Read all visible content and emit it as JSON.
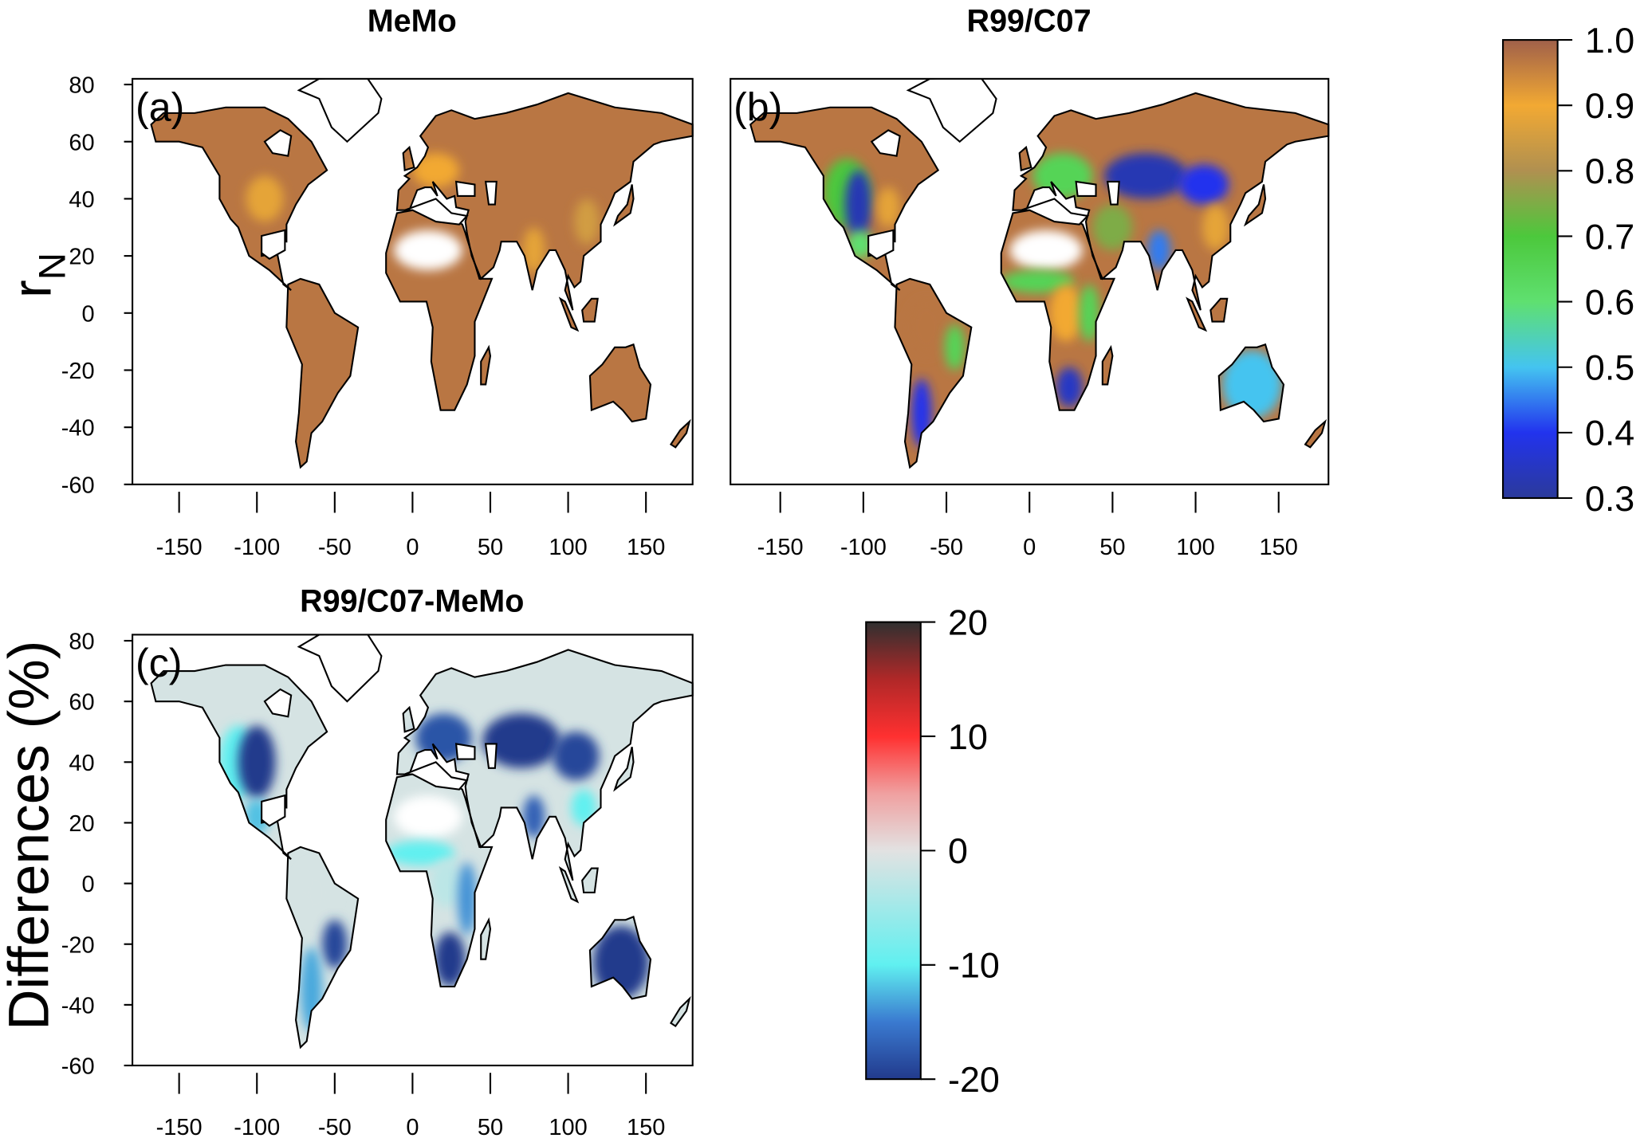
{
  "chart_data": [
    {
      "type": "heatmap",
      "panel": "(a)",
      "title": "MeMo",
      "ylabel": "r_N",
      "xlim": [
        -180,
        180
      ],
      "ylim": [
        -60,
        82
      ],
      "xticks": [
        -150,
        -100,
        -50,
        0,
        50,
        100,
        150
      ],
      "yticks": [
        80,
        60,
        40,
        20,
        0,
        -20,
        -40,
        -60
      ],
      "colorbar": "rn",
      "base_value": 0.97,
      "regions": [
        {
          "name": "central-us",
          "lon": -95,
          "lat": 40,
          "rlon": 12,
          "rlat": 8,
          "value": 0.88
        },
        {
          "name": "europe",
          "lon": 15,
          "lat": 50,
          "rlon": 15,
          "rlat": 6,
          "value": 0.9
        },
        {
          "name": "india",
          "lon": 78,
          "lat": 22,
          "rlon": 7,
          "rlat": 8,
          "value": 0.88
        },
        {
          "name": "east-china",
          "lon": 112,
          "lat": 32,
          "rlon": 8,
          "rlat": 8,
          "value": 0.85
        },
        {
          "name": "sahara",
          "lon": 10,
          "lat": 22,
          "rlon": 22,
          "rlat": 7,
          "value": null
        }
      ]
    },
    {
      "type": "heatmap",
      "panel": "(b)",
      "title": "R99/C07",
      "xlim": [
        -180,
        180
      ],
      "ylim": [
        -60,
        82
      ],
      "xticks": [
        -150,
        -100,
        -50,
        0,
        50,
        100,
        150
      ],
      "colorbar": "rn",
      "base_value": 0.97,
      "regions": [
        {
          "name": "western-us",
          "lon": -110,
          "lat": 42,
          "rlon": 14,
          "rlat": 12,
          "value": 0.7
        },
        {
          "name": "central-us",
          "lon": -103,
          "lat": 38,
          "rlon": 8,
          "rlat": 12,
          "value": 0.33
        },
        {
          "name": "mexico",
          "lon": -102,
          "lat": 24,
          "rlon": 8,
          "rlat": 5,
          "value": 0.6
        },
        {
          "name": "eastern-us",
          "lon": -85,
          "lat": 37,
          "rlon": 7,
          "rlat": 7,
          "value": 0.88
        },
        {
          "name": "europe",
          "lon": 20,
          "lat": 48,
          "rlon": 18,
          "rlat": 8,
          "value": 0.65
        },
        {
          "name": "central-asia",
          "lon": 70,
          "lat": 48,
          "rlon": 25,
          "rlat": 8,
          "value": 0.33
        },
        {
          "name": "mongolia",
          "lon": 105,
          "lat": 45,
          "rlon": 15,
          "rlat": 7,
          "value": 0.4
        },
        {
          "name": "middle-east",
          "lon": 50,
          "lat": 30,
          "rlon": 12,
          "rlat": 8,
          "value": 0.75
        },
        {
          "name": "india",
          "lon": 78,
          "lat": 22,
          "rlon": 7,
          "rlat": 7,
          "value": 0.45
        },
        {
          "name": "east-china",
          "lon": 112,
          "lat": 30,
          "rlon": 8,
          "rlat": 8,
          "value": 0.88
        },
        {
          "name": "sahara",
          "lon": 10,
          "lat": 22,
          "rlon": 22,
          "rlat": 7,
          "value": null
        },
        {
          "name": "sahel",
          "lon": 5,
          "lat": 11,
          "rlon": 22,
          "rlat": 4,
          "value": 0.65
        },
        {
          "name": "central-africa",
          "lon": 22,
          "lat": 0,
          "rlon": 10,
          "rlat": 10,
          "value": 0.9
        },
        {
          "name": "east-africa",
          "lon": 36,
          "lat": 0,
          "rlon": 6,
          "rlat": 10,
          "value": 0.65
        },
        {
          "name": "southern-africa",
          "lon": 24,
          "lat": -26,
          "rlon": 8,
          "rlat": 7,
          "value": 0.35
        },
        {
          "name": "amazon",
          "lon": -62,
          "lat": -5,
          "rlon": 12,
          "rlat": 10,
          "value": 0.97
        },
        {
          "name": "brazil-east",
          "lon": -45,
          "lat": -12,
          "rlon": 6,
          "rlat": 8,
          "value": 0.65
        },
        {
          "name": "argentina",
          "lon": -65,
          "lat": -35,
          "rlon": 6,
          "rlat": 12,
          "value": 0.4
        },
        {
          "name": "australia",
          "lon": 134,
          "lat": -25,
          "rlon": 18,
          "rlat": 12,
          "value": 0.5
        }
      ]
    },
    {
      "type": "heatmap",
      "panel": "(c)",
      "title": "R99/C07-MeMo",
      "ylabel": "Differences (%)",
      "xlim": [
        -180,
        180
      ],
      "ylim": [
        -60,
        82
      ],
      "xticks": [
        -150,
        -100,
        -50,
        0,
        50,
        100,
        150
      ],
      "yticks": [
        80,
        60,
        40,
        20,
        0,
        -20,
        -40,
        -60
      ],
      "colorbar": "diff",
      "base_value": -1,
      "regions": [
        {
          "name": "western-us",
          "lon": -112,
          "lat": 40,
          "rlon": 12,
          "rlat": 12,
          "value": -10
        },
        {
          "name": "central-us",
          "lon": -100,
          "lat": 40,
          "rlon": 12,
          "rlat": 12,
          "value": -20
        },
        {
          "name": "mexico",
          "lon": -100,
          "lat": 22,
          "rlon": 8,
          "rlat": 6,
          "value": -12
        },
        {
          "name": "europe",
          "lon": 20,
          "lat": 48,
          "rlon": 18,
          "rlat": 8,
          "value": -18
        },
        {
          "name": "central-asia",
          "lon": 70,
          "lat": 47,
          "rlon": 25,
          "rlat": 9,
          "value": -20
        },
        {
          "name": "mongolia",
          "lon": 105,
          "lat": 42,
          "rlon": 15,
          "rlat": 8,
          "value": -19
        },
        {
          "name": "india",
          "lon": 78,
          "lat": 22,
          "rlon": 7,
          "rlat": 7,
          "value": -17
        },
        {
          "name": "south-china",
          "lon": 110,
          "lat": 25,
          "rlon": 8,
          "rlat": 6,
          "value": -10
        },
        {
          "name": "sahara",
          "lon": 10,
          "lat": 22,
          "rlon": 22,
          "rlat": 7,
          "value": null
        },
        {
          "name": "sahel",
          "lon": 5,
          "lat": 10,
          "rlon": 22,
          "rlat": 4,
          "value": -10
        },
        {
          "name": "central-africa",
          "lon": 22,
          "lat": 0,
          "rlon": 10,
          "rlat": 8,
          "value": -3
        },
        {
          "name": "east-africa",
          "lon": 35,
          "lat": -5,
          "rlon": 6,
          "rlat": 12,
          "value": -14
        },
        {
          "name": "southern-africa",
          "lon": 24,
          "lat": -25,
          "rlon": 10,
          "rlat": 9,
          "value": -20
        },
        {
          "name": "amazon",
          "lon": -62,
          "lat": -3,
          "rlon": 12,
          "rlat": 9,
          "value": -1
        },
        {
          "name": "brazil-south",
          "lon": -50,
          "lat": -20,
          "rlon": 8,
          "rlat": 8,
          "value": -19
        },
        {
          "name": "argentina",
          "lon": -65,
          "lat": -35,
          "rlon": 7,
          "rlat": 14,
          "value": -13
        },
        {
          "name": "australia",
          "lon": 134,
          "lat": -26,
          "rlon": 18,
          "rlat": 12,
          "value": -20
        }
      ]
    }
  ],
  "colorbars": {
    "rn": {
      "range": [
        0.3,
        1.0
      ],
      "tick_labels": [
        "1.0",
        "0.9",
        "0.8",
        "0.7",
        "0.6",
        "0.5",
        "0.4",
        "0.3"
      ],
      "ticks": [
        1.0,
        0.9,
        0.8,
        0.7,
        0.6,
        0.5,
        0.4,
        0.3
      ],
      "stops": [
        [
          0.3,
          "#2b3a9a"
        ],
        [
          0.4,
          "#2233ee"
        ],
        [
          0.5,
          "#44c4f0"
        ],
        [
          0.6,
          "#5fe070"
        ],
        [
          0.7,
          "#4cc83c"
        ],
        [
          0.8,
          "#b09050"
        ],
        [
          0.9,
          "#f2a933"
        ],
        [
          1.0,
          "#a0604a"
        ]
      ]
    },
    "diff": {
      "range": [
        -20,
        20
      ],
      "tick_labels": [
        "20",
        "10",
        "0",
        "-10",
        "-20"
      ],
      "ticks": [
        20,
        10,
        0,
        -10,
        -20
      ],
      "stops": [
        [
          -20,
          "#223a8c"
        ],
        [
          -15,
          "#3a7ad0"
        ],
        [
          -10,
          "#60f0f0"
        ],
        [
          0,
          "#e2e2e2"
        ],
        [
          5,
          "#f0a0a0"
        ],
        [
          10,
          "#ff3030"
        ],
        [
          15,
          "#b02828"
        ],
        [
          20,
          "#303030"
        ]
      ]
    }
  },
  "land_na_color": "#ffffff",
  "continents": {
    "north-america": [
      [
        -168,
        66
      ],
      [
        -160,
        70
      ],
      [
        -140,
        70
      ],
      [
        -120,
        72
      ],
      [
        -95,
        72
      ],
      [
        -80,
        68
      ],
      [
        -65,
        60
      ],
      [
        -55,
        50
      ],
      [
        -67,
        45
      ],
      [
        -75,
        38
      ],
      [
        -81,
        31
      ],
      [
        -81,
        25
      ],
      [
        -97,
        26
      ],
      [
        -97,
        20
      ],
      [
        -87,
        21
      ],
      [
        -83,
        10
      ],
      [
        -78,
        8
      ],
      [
        -92,
        15
      ],
      [
        -105,
        20
      ],
      [
        -112,
        30
      ],
      [
        -117,
        33
      ],
      [
        -124,
        40
      ],
      [
        -124,
        48
      ],
      [
        -135,
        58
      ],
      [
        -150,
        60
      ],
      [
        -165,
        60
      ]
    ],
    "south-america": [
      [
        -80,
        10
      ],
      [
        -72,
        12
      ],
      [
        -60,
        10
      ],
      [
        -50,
        0
      ],
      [
        -35,
        -5
      ],
      [
        -40,
        -22
      ],
      [
        -48,
        -28
      ],
      [
        -58,
        -38
      ],
      [
        -65,
        -42
      ],
      [
        -68,
        -52
      ],
      [
        -72,
        -54
      ],
      [
        -75,
        -45
      ],
      [
        -73,
        -35
      ],
      [
        -71,
        -18
      ],
      [
        -81,
        -5
      ]
    ],
    "africa": [
      [
        -17,
        21
      ],
      [
        -10,
        35
      ],
      [
        10,
        37
      ],
      [
        32,
        31
      ],
      [
        34,
        28
      ],
      [
        43,
        12
      ],
      [
        51,
        12
      ],
      [
        40,
        -3
      ],
      [
        40,
        -15
      ],
      [
        35,
        -25
      ],
      [
        27,
        -34
      ],
      [
        18,
        -34
      ],
      [
        12,
        -17
      ],
      [
        13,
        -5
      ],
      [
        9,
        4
      ],
      [
        -8,
        4
      ],
      [
        -17,
        14
      ]
    ],
    "eurasia": [
      [
        -10,
        36
      ],
      [
        -9,
        43
      ],
      [
        -2,
        47
      ],
      [
        -5,
        48
      ],
      [
        3,
        51
      ],
      [
        8,
        55
      ],
      [
        10,
        58
      ],
      [
        5,
        62
      ],
      [
        15,
        69
      ],
      [
        25,
        71
      ],
      [
        40,
        68
      ],
      [
        60,
        70
      ],
      [
        80,
        73
      ],
      [
        100,
        77
      ],
      [
        130,
        72
      ],
      [
        160,
        70
      ],
      [
        180,
        66
      ],
      [
        180,
        62
      ],
      [
        160,
        60
      ],
      [
        155,
        59
      ],
      [
        142,
        53
      ],
      [
        140,
        46
      ],
      [
        130,
        42
      ],
      [
        127,
        38
      ],
      [
        121,
        31
      ],
      [
        121,
        25
      ],
      [
        110,
        20
      ],
      [
        108,
        11
      ],
      [
        104,
        9
      ],
      [
        100,
        13
      ],
      [
        98,
        8
      ],
      [
        103,
        1
      ],
      [
        98,
        15
      ],
      [
        92,
        22
      ],
      [
        88,
        22
      ],
      [
        80,
        15
      ],
      [
        77,
        8
      ],
      [
        72,
        20
      ],
      [
        67,
        25
      ],
      [
        57,
        25
      ],
      [
        56,
        22
      ],
      [
        52,
        16
      ],
      [
        44,
        12
      ],
      [
        38,
        20
      ],
      [
        35,
        28
      ],
      [
        34,
        32
      ],
      [
        36,
        36
      ],
      [
        28,
        37
      ],
      [
        27,
        41
      ],
      [
        22,
        40
      ],
      [
        19,
        42
      ],
      [
        13,
        46
      ],
      [
        16,
        41
      ],
      [
        12,
        44
      ],
      [
        8,
        44
      ],
      [
        3,
        43
      ],
      [
        -2,
        36
      ]
    ],
    "australia": [
      [
        114,
        -22
      ],
      [
        122,
        -18
      ],
      [
        130,
        -12
      ],
      [
        137,
        -12
      ],
      [
        142,
        -11
      ],
      [
        146,
        -19
      ],
      [
        153,
        -25
      ],
      [
        150,
        -37
      ],
      [
        141,
        -38
      ],
      [
        135,
        -34
      ],
      [
        129,
        -31
      ],
      [
        115,
        -34
      ]
    ],
    "great-britain": [
      [
        -5,
        50
      ],
      [
        1,
        51
      ],
      [
        -2,
        58
      ],
      [
        -6,
        56
      ]
    ],
    "japan": [
      [
        130,
        31
      ],
      [
        140,
        35
      ],
      [
        142,
        40
      ],
      [
        141,
        45
      ],
      [
        138,
        38
      ],
      [
        132,
        34
      ]
    ],
    "madagascar": [
      [
        44,
        -25
      ],
      [
        47,
        -25
      ],
      [
        50,
        -15
      ],
      [
        49,
        -12
      ],
      [
        44,
        -17
      ]
    ],
    "borneo": [
      [
        109,
        1
      ],
      [
        115,
        5
      ],
      [
        119,
        5
      ],
      [
        117,
        -3
      ],
      [
        110,
        -3
      ]
    ],
    "sumatra": [
      [
        95,
        5
      ],
      [
        98,
        4
      ],
      [
        106,
        -6
      ],
      [
        102,
        -5
      ]
    ],
    "new-zealand": [
      [
        166,
        -46
      ],
      [
        172,
        -41
      ],
      [
        178,
        -38
      ],
      [
        176,
        -42
      ],
      [
        169,
        -47
      ]
    ]
  },
  "white_regions": {
    "greenland": [
      [
        -73,
        78
      ],
      [
        -60,
        82
      ],
      [
        -30,
        83
      ],
      [
        -20,
        75
      ],
      [
        -22,
        70
      ],
      [
        -42,
        60
      ],
      [
        -52,
        65
      ],
      [
        -60,
        75
      ]
    ],
    "hudson-bay": [
      [
        -95,
        60
      ],
      [
        -85,
        64
      ],
      [
        -78,
        62
      ],
      [
        -80,
        55
      ],
      [
        -90,
        56
      ]
    ],
    "gulf-of-mexico": [
      [
        -97,
        27
      ],
      [
        -82,
        29
      ],
      [
        -82,
        22
      ],
      [
        -92,
        19
      ],
      [
        -97,
        21
      ]
    ],
    "mediterranean": [
      [
        -5,
        36
      ],
      [
        5,
        38
      ],
      [
        15,
        40
      ],
      [
        25,
        35
      ],
      [
        35,
        34
      ],
      [
        30,
        31
      ],
      [
        15,
        32
      ],
      [
        0,
        36
      ]
    ],
    "caspian": [
      [
        47,
        46
      ],
      [
        54,
        46
      ],
      [
        53,
        38
      ],
      [
        49,
        38
      ]
    ],
    "black-sea": [
      [
        28,
        46
      ],
      [
        40,
        45
      ],
      [
        40,
        41
      ],
      [
        29,
        41
      ]
    ]
  },
  "y_axis_labels": {
    "top": "r",
    "top_sub": "N",
    "bottom": "Differences (%)"
  }
}
